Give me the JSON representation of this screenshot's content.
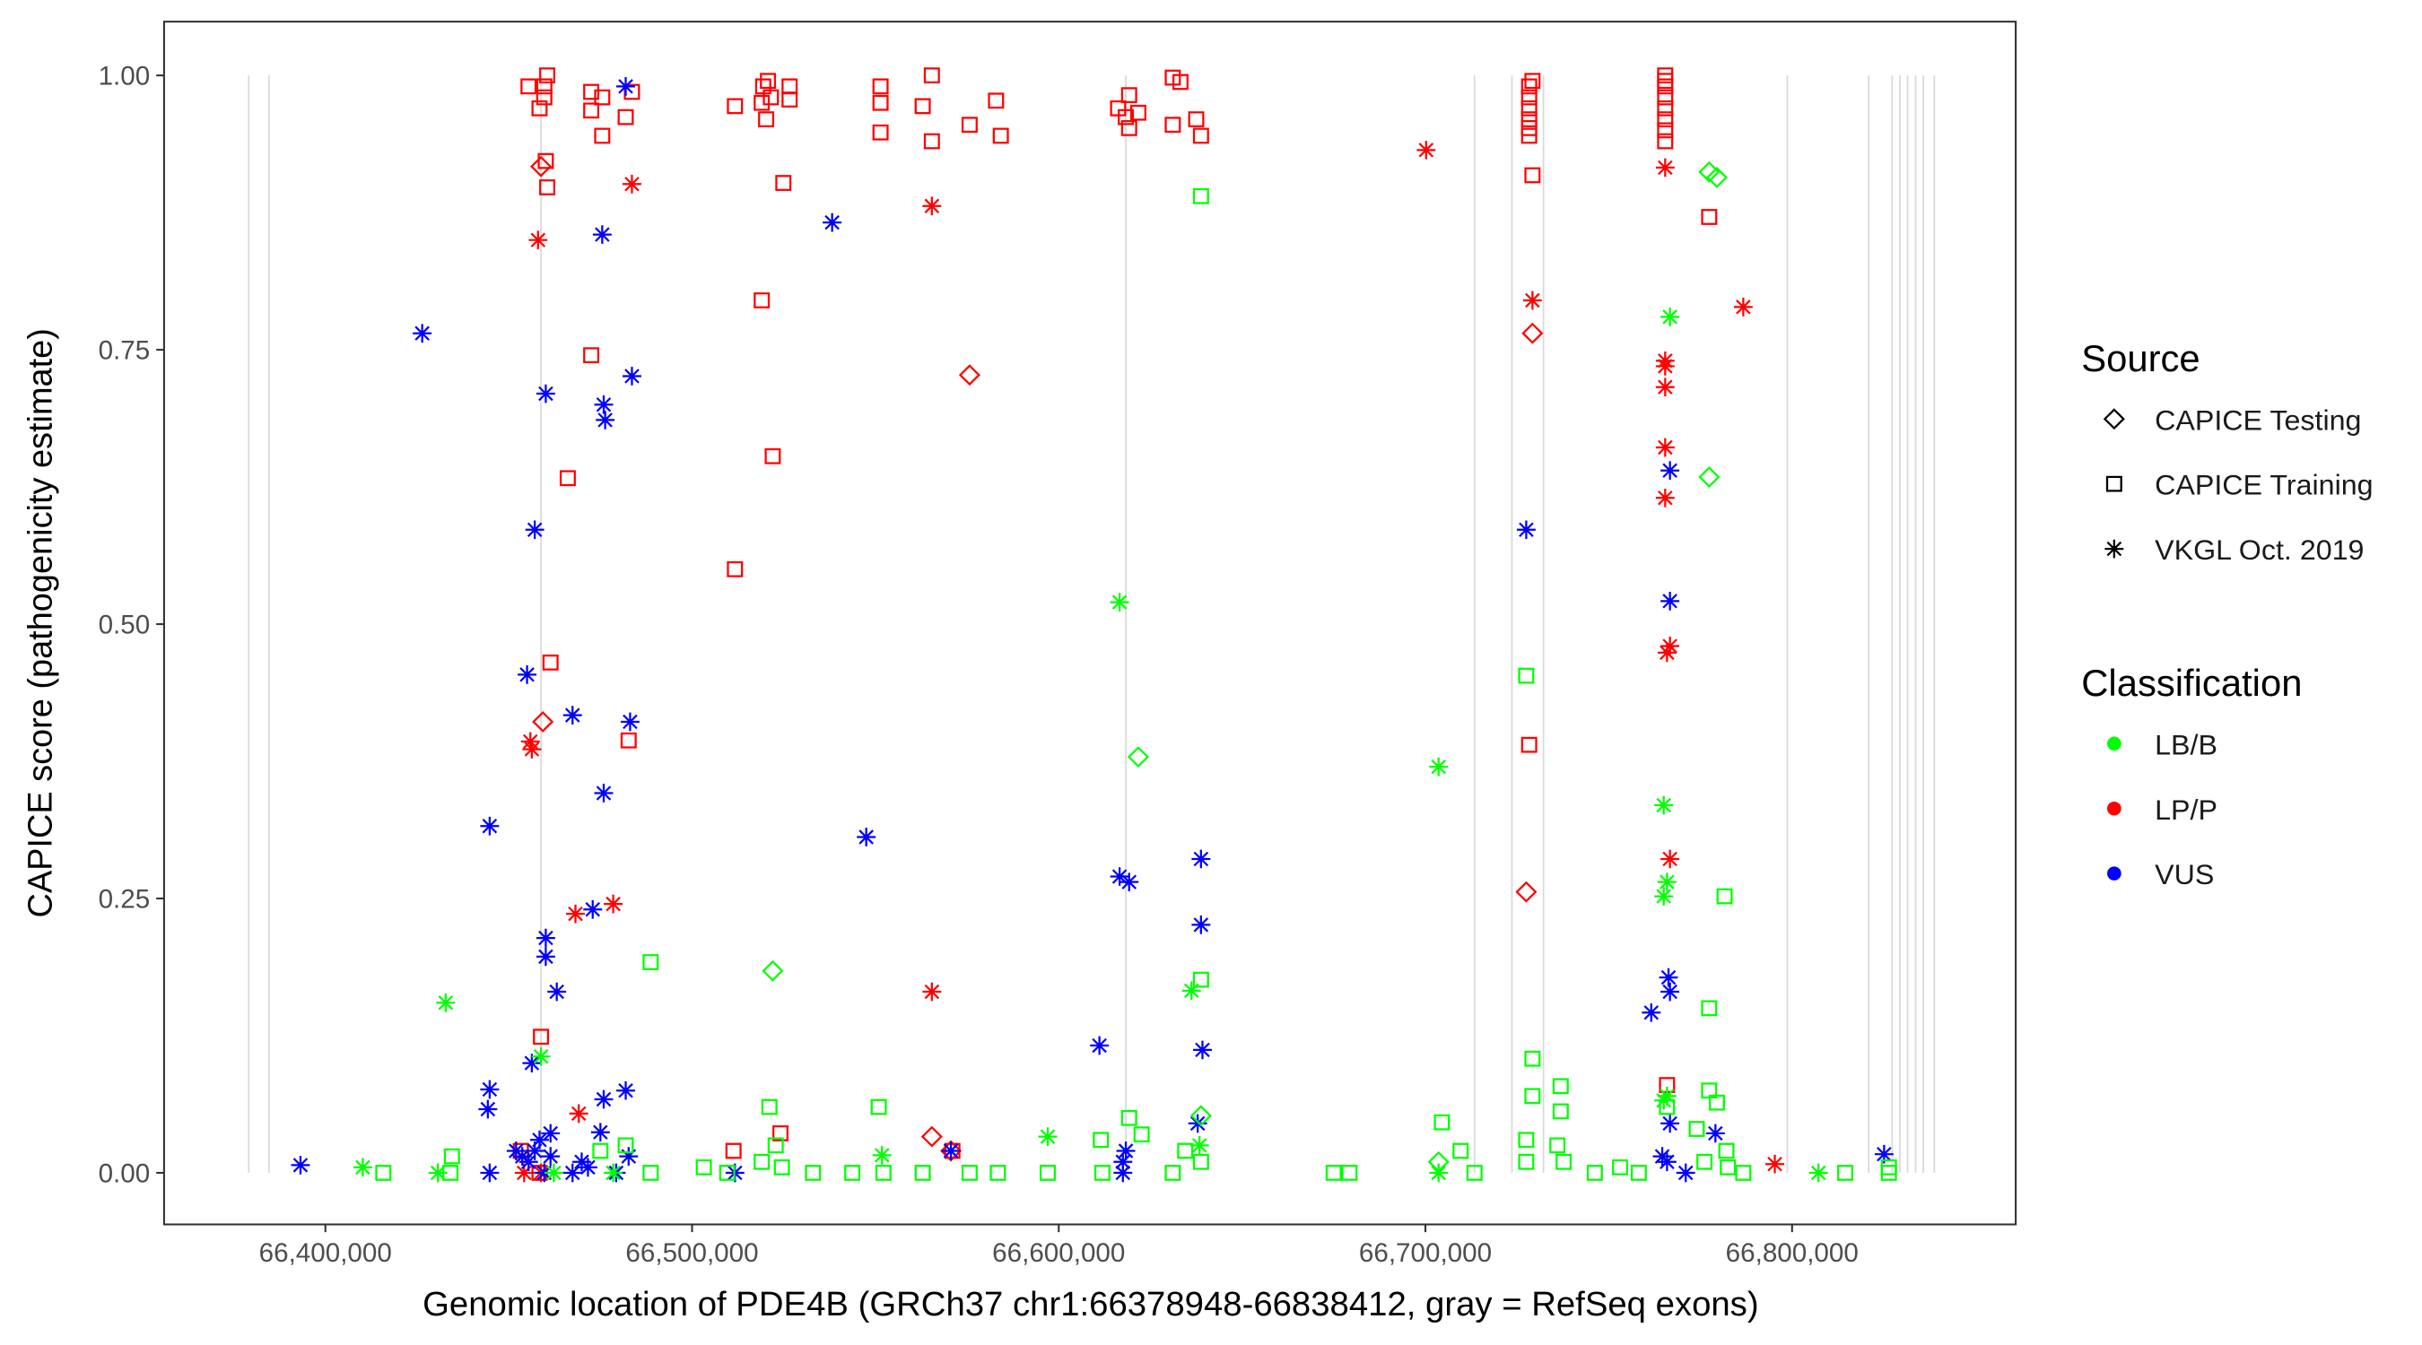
{
  "chart_data": {
    "type": "scatter",
    "xlabel": "Genomic location of PDE4B (GRCh37 chr1:66378948-66838412, gray = RefSeq exons)",
    "ylabel": "CAPICE score (pathogenicity estimate)",
    "xlim": [
      66356000,
      66861000
    ],
    "ylim": [
      -0.047,
      1.049
    ],
    "x_ticks": [
      {
        "value": 66400000,
        "label": "66,400,000"
      },
      {
        "value": 66500000,
        "label": "66,500,000"
      },
      {
        "value": 66600000,
        "label": "66,600,000"
      },
      {
        "value": 66700000,
        "label": "66,700,000"
      },
      {
        "value": 66800000,
        "label": "66,800,000"
      }
    ],
    "y_ticks": [
      {
        "value": 0,
        "label": "0.00"
      },
      {
        "value": 0.25,
        "label": "0.25"
      },
      {
        "value": 0.5,
        "label": "0.50"
      },
      {
        "value": 0.75,
        "label": "0.75"
      },
      {
        "value": 1.0,
        "label": "1.00"
      }
    ],
    "grid": false,
    "exons": [
      66379100,
      66384600,
      66458800,
      66618300,
      66713400,
      66723600,
      66732200,
      66798700,
      66820900,
      66827300,
      66829400,
      66831500,
      66833700,
      66835800,
      66838800
    ],
    "exon_color": "#d9d9d9",
    "legend": {
      "placement": "right",
      "source_title": "Source",
      "source_items": [
        {
          "label": "CAPICE Testing",
          "shape": "diamond"
        },
        {
          "label": "CAPICE Training",
          "shape": "square"
        },
        {
          "label": "VKGL Oct. 2019",
          "shape": "asterisk"
        }
      ],
      "class_title": "Classification",
      "class_items": [
        {
          "label": "LB/B",
          "color": "#00ff00"
        },
        {
          "label": "LP/P",
          "color": "#ff0000"
        },
        {
          "label": "VUS",
          "color": "#0000ff"
        }
      ]
    },
    "series": [
      {
        "source": "CAPICE Training",
        "shape": "square",
        "classification": "LP/P",
        "color": "#ff0000",
        "points": [
          [
            66455400,
            0.99
          ],
          [
            66458400,
            0.97
          ],
          [
            66459700,
            0.99
          ],
          [
            66460500,
            1.0
          ],
          [
            66459700,
            0.98
          ],
          [
            66460100,
            0.922
          ],
          [
            66460500,
            0.898
          ],
          [
            66472500,
            0.985
          ],
          [
            66472500,
            0.968
          ],
          [
            66475500,
            0.98
          ],
          [
            66475500,
            0.945
          ],
          [
            66481900,
            0.962
          ],
          [
            66483600,
            0.985
          ],
          [
            66511700,
            0.972
          ],
          [
            66519000,
            0.975
          ],
          [
            66519400,
            0.99
          ],
          [
            66520200,
            0.96
          ],
          [
            66520700,
            0.995
          ],
          [
            66521500,
            0.98
          ],
          [
            66526600,
            0.99
          ],
          [
            66526600,
            0.978
          ],
          [
            66524900,
            0.902
          ],
          [
            66551400,
            0.99
          ],
          [
            66551400,
            0.975
          ],
          [
            66551400,
            0.948
          ],
          [
            66562900,
            0.972
          ],
          [
            66565400,
            1.0
          ],
          [
            66565400,
            0.94
          ],
          [
            66575700,
            0.955
          ],
          [
            66582900,
            0.977
          ],
          [
            66584200,
            0.945
          ],
          [
            66616200,
            0.97
          ],
          [
            66618300,
            0.962
          ],
          [
            66619200,
            0.982
          ],
          [
            66619200,
            0.952
          ],
          [
            66621700,
            0.966
          ],
          [
            66631100,
            0.998
          ],
          [
            66633200,
            0.994
          ],
          [
            66631100,
            0.955
          ],
          [
            66637500,
            0.96
          ],
          [
            66638800,
            0.945
          ],
          [
            66728300,
            0.99
          ],
          [
            66728300,
            0.98
          ],
          [
            66728300,
            0.97
          ],
          [
            66728300,
            0.96
          ],
          [
            66728300,
            0.952
          ],
          [
            66728300,
            0.945
          ],
          [
            66729200,
            0.995
          ],
          [
            66729200,
            0.909
          ],
          [
            66765400,
            1.0
          ],
          [
            66765400,
            0.995
          ],
          [
            66765400,
            0.99
          ],
          [
            66765400,
            0.98
          ],
          [
            66765400,
            0.97
          ],
          [
            66765400,
            0.96
          ],
          [
            66765400,
            0.95
          ],
          [
            66765400,
            0.94
          ],
          [
            66777400,
            0.871
          ],
          [
            66519000,
            0.795
          ],
          [
            66472500,
            0.745
          ],
          [
            66466100,
            0.633
          ],
          [
            66522000,
            0.653
          ],
          [
            66511700,
            0.55
          ],
          [
            66461400,
            0.465
          ],
          [
            66482700,
            0.394
          ],
          [
            66458800,
            0.124
          ],
          [
            66728300,
            0.39
          ],
          [
            66511300,
            0.02
          ],
          [
            66524100,
            0.036
          ],
          [
            66571000,
            0.02
          ],
          [
            66765900,
            0.08
          ],
          [
            66453300,
            0.02
          ],
          [
            66458400,
            0.0
          ]
        ]
      },
      {
        "source": "CAPICE Testing",
        "shape": "diamond",
        "classification": "LP/P",
        "color": "#ff0000",
        "points": [
          [
            66458800,
            0.917
          ],
          [
            66575700,
            0.727
          ],
          [
            66729200,
            0.765
          ],
          [
            66459300,
            0.411
          ],
          [
            66727500,
            0.256
          ],
          [
            66565400,
            0.033
          ],
          [
            66570600,
            0.02
          ]
        ]
      },
      {
        "source": "VKGL Oct. 2019",
        "shape": "asterisk",
        "classification": "LP/P",
        "color": "#ff0000",
        "points": [
          [
            66483600,
            0.901
          ],
          [
            66458000,
            0.85
          ],
          [
            66565400,
            0.881
          ],
          [
            66700200,
            0.932
          ],
          [
            66765400,
            0.916
          ],
          [
            66729200,
            0.795
          ],
          [
            66786700,
            0.789
          ],
          [
            66765400,
            0.74
          ],
          [
            66765400,
            0.735
          ],
          [
            66765400,
            0.716
          ],
          [
            66765400,
            0.661
          ],
          [
            66765400,
            0.615
          ],
          [
            66766700,
            0.48
          ],
          [
            66765900,
            0.474
          ],
          [
            66455900,
            0.393
          ],
          [
            66456300,
            0.386
          ],
          [
            66468200,
            0.236
          ],
          [
            66478500,
            0.245
          ],
          [
            66766700,
            0.286
          ],
          [
            66565400,
            0.165
          ],
          [
            66469100,
            0.054
          ],
          [
            66795300,
            0.008
          ],
          [
            66454200,
            0.0
          ],
          [
            66458800,
            0.0
          ]
        ]
      },
      {
        "source": "VKGL Oct. 2019",
        "shape": "asterisk",
        "classification": "VUS",
        "color": "#0000ff",
        "points": [
          [
            66481900,
            0.99
          ],
          [
            66538200,
            0.866
          ],
          [
            66475500,
            0.855
          ],
          [
            66426400,
            0.765
          ],
          [
            66483600,
            0.726
          ],
          [
            66460100,
            0.71
          ],
          [
            66475900,
            0.7
          ],
          [
            66476300,
            0.686
          ],
          [
            66457100,
            0.586
          ],
          [
            66727500,
            0.586
          ],
          [
            66766700,
            0.64
          ],
          [
            66766700,
            0.521
          ],
          [
            66455000,
            0.454
          ],
          [
            66467400,
            0.417
          ],
          [
            66483100,
            0.411
          ],
          [
            66475900,
            0.346
          ],
          [
            66444800,
            0.316
          ],
          [
            66547500,
            0.306
          ],
          [
            66638800,
            0.286
          ],
          [
            66616600,
            0.27
          ],
          [
            66619200,
            0.265
          ],
          [
            66638800,
            0.226
          ],
          [
            66460100,
            0.214
          ],
          [
            66460100,
            0.197
          ],
          [
            66463100,
            0.165
          ],
          [
            66472900,
            0.24
          ],
          [
            66766300,
            0.178
          ],
          [
            66766700,
            0.165
          ],
          [
            66761600,
            0.146
          ],
          [
            66611100,
            0.116
          ],
          [
            66639200,
            0.112
          ],
          [
            66456300,
            0.1
          ],
          [
            66444800,
            0.076
          ],
          [
            66444300,
            0.058
          ],
          [
            66475900,
            0.067
          ],
          [
            66481900,
            0.075
          ],
          [
            66461400,
            0.036
          ],
          [
            66458400,
            0.03
          ],
          [
            66475000,
            0.037
          ],
          [
            66637900,
            0.045
          ],
          [
            66766700,
            0.045
          ],
          [
            66779100,
            0.036
          ],
          [
            66393200,
            0.007
          ],
          [
            66444800,
            0.0
          ],
          [
            66455400,
            0.01
          ],
          [
            66457100,
            0.02
          ],
          [
            66459700,
            0.0
          ],
          [
            66461400,
            0.015
          ],
          [
            66467400,
            0.0
          ],
          [
            66469900,
            0.01
          ],
          [
            66471600,
            0.005
          ],
          [
            66479300,
            0.0
          ],
          [
            66482700,
            0.015
          ],
          [
            66511700,
            0.0
          ],
          [
            66570600,
            0.02
          ],
          [
            66617500,
            0.01
          ],
          [
            66618300,
            0.02
          ],
          [
            66617500,
            0.0
          ],
          [
            66764600,
            0.015
          ],
          [
            66765900,
            0.01
          ],
          [
            66771000,
            0.0
          ],
          [
            66825100,
            0.017
          ],
          [
            66452000,
            0.02
          ],
          [
            66453700,
            0.015
          ]
        ]
      },
      {
        "source": "CAPICE Training",
        "shape": "square",
        "classification": "LB/B",
        "color": "#00ff00",
        "points": [
          [
            66638800,
            0.89
          ],
          [
            66727500,
            0.453
          ],
          [
            66781600,
            0.252
          ],
          [
            66488700,
            0.192
          ],
          [
            66638800,
            0.176
          ],
          [
            66777400,
            0.15
          ],
          [
            66729200,
            0.104
          ],
          [
            66736900,
            0.079
          ],
          [
            66777400,
            0.075
          ],
          [
            66779500,
            0.064
          ],
          [
            66550900,
            0.06
          ],
          [
            66521100,
            0.06
          ],
          [
            66619200,
            0.05
          ],
          [
            66704500,
            0.046
          ],
          [
            66729200,
            0.07
          ],
          [
            66736900,
            0.056
          ],
          [
            66611500,
            0.03
          ],
          [
            66622600,
            0.035
          ],
          [
            66709600,
            0.02
          ],
          [
            66765900,
            0.06
          ],
          [
            66415800,
            0.0
          ],
          [
            66434500,
            0.015
          ],
          [
            66434100,
            0.0
          ],
          [
            66488700,
            0.0
          ],
          [
            66503200,
            0.005
          ],
          [
            66509600,
            0.0
          ],
          [
            66519000,
            0.01
          ],
          [
            66524500,
            0.005
          ],
          [
            66533000,
            0.0
          ],
          [
            66543700,
            0.0
          ],
          [
            66552200,
            0.0
          ],
          [
            66562900,
            0.0
          ],
          [
            66575700,
            0.0
          ],
          [
            66583400,
            0.0
          ],
          [
            66597000,
            0.0
          ],
          [
            66611900,
            0.0
          ],
          [
            66631100,
            0.0
          ],
          [
            66638800,
            0.01
          ],
          [
            66675000,
            0.0
          ],
          [
            66679300,
            0.0
          ],
          [
            66713400,
            0.0
          ],
          [
            66727500,
            0.01
          ],
          [
            66737700,
            0.01
          ],
          [
            66746200,
            0.0
          ],
          [
            66753100,
            0.005
          ],
          [
            66758200,
            0.0
          ],
          [
            66776100,
            0.01
          ],
          [
            66782500,
            0.005
          ],
          [
            66786700,
            0.0
          ],
          [
            66814500,
            0.0
          ],
          [
            66826400,
            0.0
          ],
          [
            66826400,
            0.005
          ],
          [
            66774000,
            0.04
          ],
          [
            66782100,
            0.02
          ],
          [
            66481900,
            0.025
          ],
          [
            66475000,
            0.02
          ],
          [
            66727500,
            0.03
          ],
          [
            66736000,
            0.025
          ],
          [
            66634500,
            0.02
          ],
          [
            66522800,
            0.025
          ]
        ]
      },
      {
        "source": "CAPICE Testing",
        "shape": "diamond",
        "classification": "LB/B",
        "color": "#00ff00",
        "points": [
          [
            66777400,
            0.912
          ],
          [
            66779500,
            0.907
          ],
          [
            66777400,
            0.634
          ],
          [
            66621700,
            0.379
          ],
          [
            66522000,
            0.184
          ],
          [
            66638800,
            0.052
          ],
          [
            66703600,
            0.01
          ]
        ]
      },
      {
        "source": "VKGL Oct. 2019",
        "shape": "asterisk",
        "classification": "LB/B",
        "color": "#00ff00",
        "points": [
          [
            66616600,
            0.52
          ],
          [
            66703600,
            0.37
          ],
          [
            66765000,
            0.335
          ],
          [
            66766700,
            0.78
          ],
          [
            66765900,
            0.265
          ],
          [
            66765000,
            0.252
          ],
          [
            66636200,
            0.166
          ],
          [
            66432800,
            0.155
          ],
          [
            66458800,
            0.106
          ],
          [
            66597000,
            0.033
          ],
          [
            66551800,
            0.016
          ],
          [
            66410200,
            0.005
          ],
          [
            66430700,
            0.0
          ],
          [
            66703600,
            0.0
          ],
          [
            66807200,
            0.0
          ],
          [
            66765900,
            0.07
          ],
          [
            66765000,
            0.066
          ],
          [
            66638400,
            0.025
          ],
          [
            66478500,
            0.0
          ],
          [
            66462300,
            0.0
          ]
        ]
      }
    ]
  }
}
